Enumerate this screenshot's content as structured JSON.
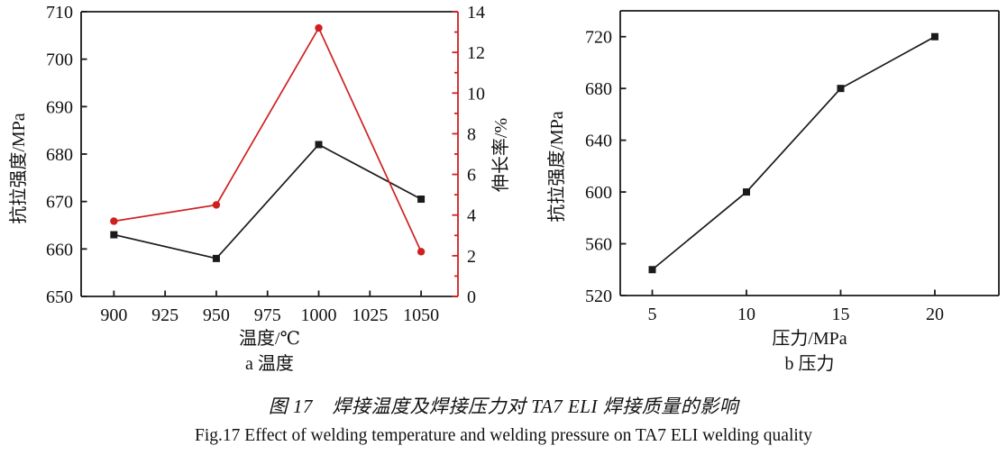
{
  "figure": {
    "caption_zh": "图 17　焊接温度及焊接压力对 TA7 ELI 焊接质量的影响",
    "caption_en": "Fig.17 Effect of welding temperature and welding pressure on TA7 ELI welding quality"
  },
  "colors": {
    "axis_black": "#1a1a1a",
    "series_black": "#1a1a1a",
    "series_red": "#cf2020",
    "background": "#ffffff"
  },
  "chart_data": [
    {
      "id": "chart-a",
      "type": "line",
      "subtitle": "a 温度",
      "xlabel": "温度/℃",
      "ylabel": "抗拉强度/MPa",
      "y2label": "伸长率/%",
      "grid": false,
      "legend": "none",
      "x": [
        900,
        950,
        1000,
        1050
      ],
      "xticks": [
        900,
        925,
        950,
        975,
        1000,
        1025,
        1050
      ],
      "xlim": [
        884,
        1068
      ],
      "ylim": [
        650,
        710
      ],
      "yticks": [
        650,
        660,
        670,
        680,
        690,
        700,
        710
      ],
      "y2lim": [
        0,
        14
      ],
      "y2ticks": [
        0,
        2,
        4,
        6,
        8,
        10,
        12,
        14
      ],
      "y2minorticks": [
        1,
        3,
        5,
        7,
        9,
        11,
        13
      ],
      "series": [
        {
          "name": "tensile-strength",
          "axis": "y",
          "marker": "square",
          "color": "#1a1a1a",
          "values": [
            663,
            658,
            682,
            670.5
          ]
        },
        {
          "name": "elongation",
          "axis": "y2",
          "marker": "circle",
          "color": "#cf2020",
          "values": [
            3.7,
            4.5,
            13.2,
            2.2
          ]
        }
      ]
    },
    {
      "id": "chart-b",
      "type": "line",
      "subtitle": "b 压力",
      "xlabel": "压力/MPa",
      "ylabel": "抗拉强度/MPa",
      "grid": false,
      "legend": "none",
      "x": [
        5,
        10,
        15,
        20
      ],
      "xticks": [
        5,
        10,
        15,
        20
      ],
      "xlim": [
        3.3,
        23.4
      ],
      "ylim": [
        520,
        740
      ],
      "yticks": [
        520,
        560,
        600,
        640,
        680,
        720
      ],
      "series": [
        {
          "name": "tensile-strength",
          "axis": "y",
          "marker": "square",
          "color": "#1a1a1a",
          "values": [
            540,
            600,
            680,
            720
          ]
        }
      ]
    }
  ]
}
